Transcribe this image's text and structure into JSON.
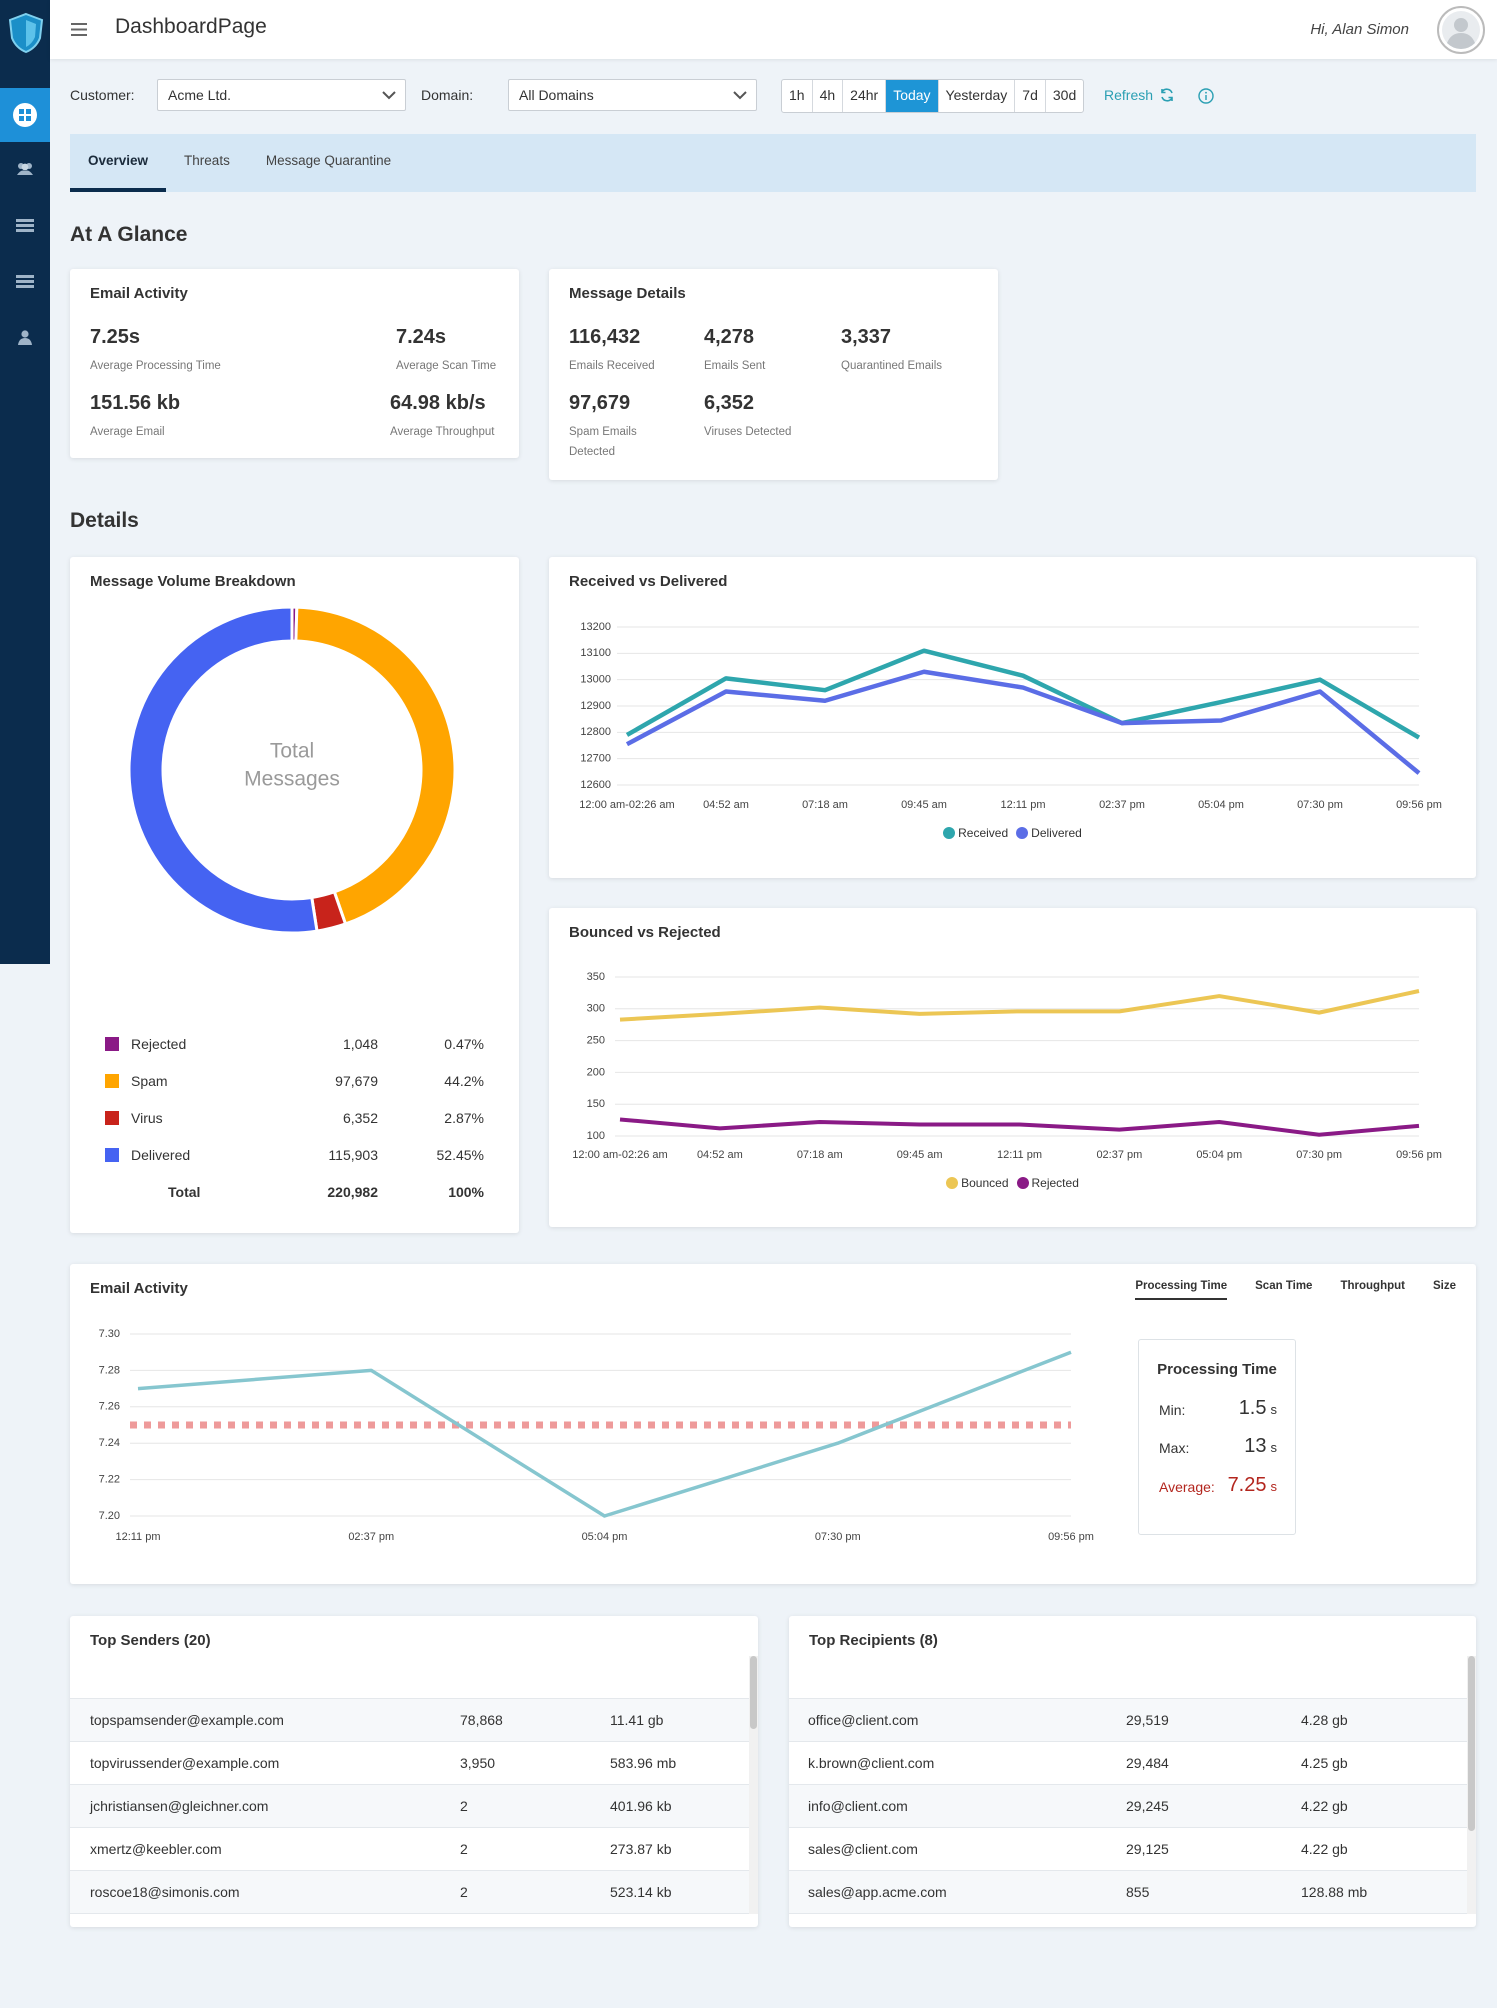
{
  "header": {
    "title": "DashboardPage",
    "greeting": "Hi, Alan Simon"
  },
  "filters": {
    "customer_label": "Customer:",
    "customer": "Acme Ltd.",
    "domain_label": "Domain:",
    "domain": "All Domains",
    "ranges": [
      "1h",
      "4h",
      "24hr",
      "Today",
      "Yesterday",
      "7d",
      "30d"
    ],
    "selected_range": 3,
    "refresh": "Refresh"
  },
  "nav": {
    "tabs": [
      "Overview",
      "Threats",
      "Message Quarantine"
    ],
    "selected": 0
  },
  "glance": {
    "title": "At A Glance",
    "email_activity": {
      "title": "Email Activity",
      "stats": [
        {
          "value": "7.25s",
          "label": "Average Processing Time"
        },
        {
          "value": "7.24s",
          "label": "Average Scan Time"
        },
        {
          "value": "151.56 kb",
          "label": "Average Email"
        },
        {
          "value": "64.98 kb/s",
          "label": "Average Throughput"
        }
      ]
    },
    "message_details": {
      "title": "Message Details",
      "stats": [
        {
          "value": "116,432",
          "label": "Emails Received"
        },
        {
          "value": "4,278",
          "label": "Emails Sent"
        },
        {
          "value": "3,337",
          "label": "Quarantined Emails"
        },
        {
          "value": "97,679",
          "label": "Spam Emails Detected"
        },
        {
          "value": "6,352",
          "label": "Viruses Detected"
        }
      ]
    }
  },
  "details_title": "Details",
  "chart_data": [
    {
      "type": "pie",
      "title": "Message Volume Breakdown",
      "center_label": [
        "Total",
        "Messages"
      ],
      "categories": [
        "Rejected",
        "Spam",
        "Virus",
        "Delivered"
      ],
      "colors": [
        "#8a1a86",
        "#ffa500",
        "#c8231b",
        "#4563f2"
      ],
      "values": [
        1048,
        97679,
        6352,
        115903
      ],
      "value_labels": [
        "1,048",
        "97,679",
        "6,352",
        "115,903"
      ],
      "percent_labels": [
        "0.47%",
        "44.2%",
        "2.87%",
        "52.45%"
      ],
      "total": {
        "label": "Total",
        "value": "220,982",
        "percent": "100%"
      }
    },
    {
      "type": "line",
      "title": "Received vs Delivered",
      "categories": [
        "12:00 am-02:26 am",
        "04:52 am",
        "07:18 am",
        "09:45 am",
        "12:11 pm",
        "02:37 pm",
        "05:04 pm",
        "07:30 pm",
        "09:56 pm"
      ],
      "series": [
        {
          "name": "Received",
          "color": "#2ea6ad",
          "values": [
            12790,
            13005,
            12960,
            13110,
            13015,
            12835,
            12915,
            13000,
            12780
          ]
        },
        {
          "name": "Delivered",
          "color": "#5b6de6",
          "values": [
            12755,
            12955,
            12920,
            13030,
            12970,
            12835,
            12845,
            12955,
            12645
          ]
        }
      ],
      "ylim": [
        12600,
        13200
      ],
      "yticks": [
        12600,
        12700,
        12800,
        12900,
        13000,
        13100,
        13200
      ],
      "grid": true
    },
    {
      "type": "line",
      "title": "Bounced vs Rejected",
      "categories": [
        "12:00 am-02:26 am",
        "04:52 am",
        "07:18 am",
        "09:45 am",
        "12:11 pm",
        "02:37 pm",
        "05:04 pm",
        "07:30 pm",
        "09:56 pm"
      ],
      "series": [
        {
          "name": "Bounced",
          "color": "#ecc654",
          "values": [
            283,
            292,
            302,
            292,
            296,
            296,
            320,
            294,
            328
          ]
        },
        {
          "name": "Rejected",
          "color": "#8a1a86",
          "values": [
            126,
            112,
            122,
            118,
            118,
            110,
            122,
            102,
            116
          ]
        }
      ],
      "ylim": [
        100,
        350
      ],
      "yticks": [
        100,
        150,
        200,
        250,
        300,
        350
      ],
      "grid": true
    },
    {
      "type": "line",
      "title": "Email Activity",
      "tabs": [
        "Processing Time",
        "Scan Time",
        "Throughput",
        "Size"
      ],
      "selected_tab": 0,
      "categories": [
        "12:11 pm",
        "02:37 pm",
        "05:04 pm",
        "07:30 pm",
        "09:56 pm"
      ],
      "series": [
        {
          "color": "#86c6cf",
          "values": [
            7.27,
            7.28,
            7.2,
            7.24,
            7.29
          ]
        }
      ],
      "ylim": [
        7.2,
        7.3
      ],
      "yticks": [
        {
          "value": 7.2,
          "label": "7.20"
        },
        7.22,
        7.24,
        7.26,
        7.28,
        {
          "value": 7.3,
          "label": "7.30"
        }
      ],
      "grid": true,
      "average_color": "#ee9a9a",
      "stats": {
        "title": "Processing Time",
        "min_label": "Min:",
        "min": 1.5,
        "max_label": "Max:",
        "max": 13,
        "average_label": "Average:",
        "average": 7.25,
        "unit": "s"
      }
    }
  ],
  "top_senders": {
    "title": "Top Senders (20)",
    "rows": [
      [
        "topspamsender@example.com",
        "78,868",
        "11.41 gb"
      ],
      [
        "topvirussender@example.com",
        "3,950",
        "583.96 mb"
      ],
      [
        "jchristiansen@gleichner.com",
        "2",
        "401.96 kb"
      ],
      [
        "xmertz@keebler.com",
        "2",
        "273.87 kb"
      ],
      [
        "roscoe18@simonis.com",
        "2",
        "523.14 kb"
      ]
    ]
  },
  "top_recipients": {
    "title": "Top Recipients (8)",
    "rows": [
      [
        "office@client.com",
        "29,519",
        "4.28 gb"
      ],
      [
        "k.brown@client.com",
        "29,484",
        "4.25 gb"
      ],
      [
        "info@client.com",
        "29,245",
        "4.22 gb"
      ],
      [
        "sales@client.com",
        "29,125",
        "4.22 gb"
      ],
      [
        "sales@app.acme.com",
        "855",
        "128.88 mb"
      ]
    ]
  }
}
